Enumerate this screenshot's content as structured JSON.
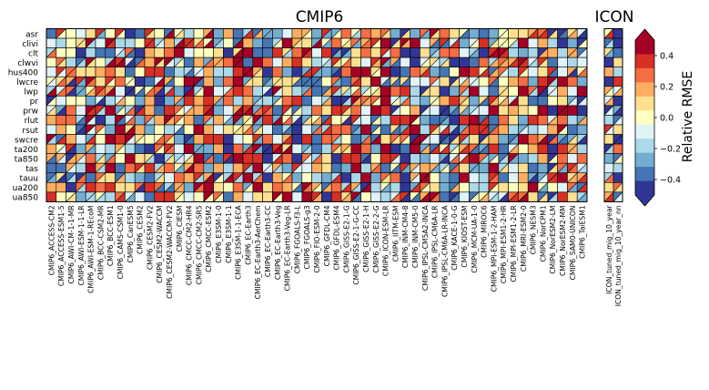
{
  "chart_data": {
    "type": "heatmap",
    "panels": [
      {
        "title": "CMIP6",
        "group": "cmip6"
      },
      {
        "title": "ICON",
        "group": "icon"
      }
    ],
    "rows": [
      "asr",
      "clivi",
      "clt",
      "clwvi",
      "hus400",
      "lwcre",
      "lwp",
      "pr",
      "prw",
      "rlut",
      "rsut",
      "swcre",
      "ta200",
      "ta850",
      "tas",
      "tauu",
      "ua200",
      "ua850"
    ],
    "cmip6_columns": [
      "CMIP6_ACCESS-CM2",
      "CMIP6_ACCESS-ESM1-5",
      "CMIP6_AWI-CM-1-1-MR",
      "CMIP6_AWI-ESM-1-1-LR",
      "CMIP6_AWI-ESM-1-REcoM",
      "CMIP6_BCC-CSM2-MR",
      "CMIP6_BCC-ESM1",
      "CMIP6_CAMS-CSM1-0",
      "CMIP6_CanESM5",
      "CMIP6_CESM2",
      "CMIP6_CESM2-FV2",
      "CMIP6_CESM2-WACCM",
      "CMIP6_CESM2-WACCM-FV2",
      "CMIP6_CIESM",
      "CMIP6_CMCC-CM2-HR4",
      "CMIP6_CMCC-CM2-SR5",
      "CMIP6_CMCC-ESM2",
      "CMIP6_E3SM-1-0",
      "CMIP6_E3SM-1-1",
      "CMIP6_E3SM-1-1-ECA",
      "CMIP6_EC-Earth3",
      "CMIP6_EC-Earth3-AerChem",
      "CMIP6_EC-Earth3-CC",
      "CMIP6_EC-Earth3-Veg",
      "CMIP6_EC-Earth3-Veg-LR",
      "CMIP6_FGOALS-f3-L",
      "CMIP6_FGOALS-g3",
      "CMIP6_FIO-ESM-2-0",
      "CMIP6_GFDL-CM4",
      "CMIP6_GFDL-ESM4",
      "CMIP6_GISS-E2-1-G",
      "CMIP6_GISS-E2-1-G-CC",
      "CMIP6_GISS-E2-1-H",
      "CMIP6_GISS-E2-2-G",
      "CMIP6_ICON-ESM-LR",
      "CMIP6_IITM-ESM",
      "CMIP6_INM-CM4-8",
      "CMIP6_INM-CM5-0",
      "CMIP6_IPSL-CM5A2-INCA",
      "CMIP6_IPSL-CM6A-LR",
      "CMIP6_IPSL-CM6A-LR-INCA",
      "CMIP6_KACE-1-0-G",
      "CMIP6_KIOST-ESM",
      "CMIP6_MCM-UA-1-0",
      "CMIP6_MIROC6",
      "CMIP6_MPI-ESM-1-2-HAM",
      "CMIP6_MPI-ESM1-2-HR",
      "CMIP6_MPI-ESM1-2-LR",
      "CMIP6_MRI-ESM2-0",
      "CMIP6_NESM3",
      "CMIP6_NorCPM1",
      "CMIP6_NorESM2-LM",
      "CMIP6_NorESM2-MM",
      "CMIP6_SAM0-UNICON",
      "CMIP6_TaiESM1"
    ],
    "icon_columns": [
      "ICON_tuned_mig_10_year",
      "ICON_tuned_mig_10_year_nn"
    ],
    "colorbar": {
      "label": "Relative RMSE",
      "ticks": [
        0.4,
        0.2,
        0.0,
        -0.2,
        -0.4
      ],
      "tick_labels": [
        "0.4",
        "0.2",
        "0.0",
        "−0.2",
        "−0.4"
      ],
      "range": [
        -0.5,
        0.5
      ],
      "colors": [
        "#313695",
        "#4575b4",
        "#74add1",
        "#abd9e9",
        "#e0f3f8",
        "#ffffbf",
        "#fee090",
        "#fdae61",
        "#f46d43",
        "#d73027",
        "#a50026"
      ]
    }
  }
}
